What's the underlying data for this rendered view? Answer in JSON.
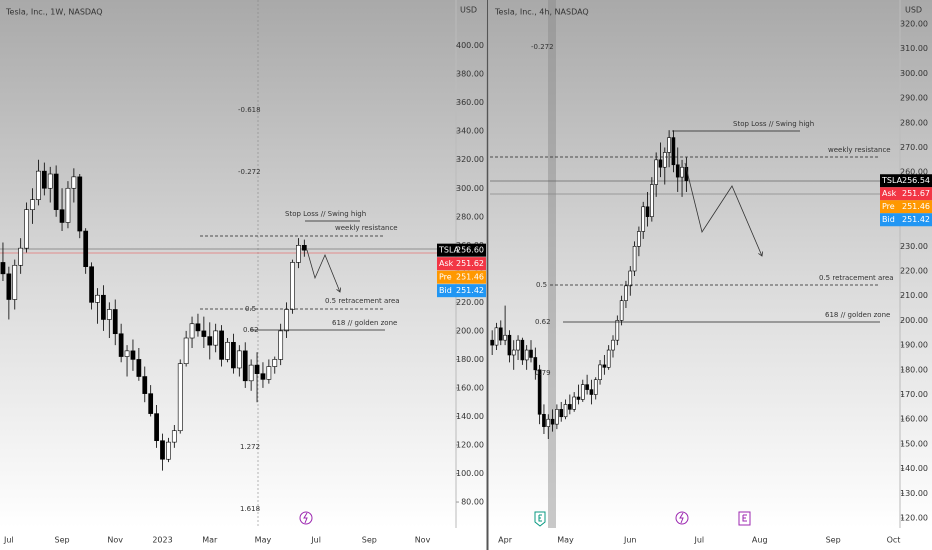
{
  "chart_data": [
    {
      "type": "candlestick",
      "title": "Tesla, Inc., 1W, NASDAQ",
      "currency": "USD",
      "categories": [
        null,
        "Jul",
        null,
        null,
        null,
        null,
        null,
        null,
        null,
        null,
        "Sep",
        null,
        null,
        null,
        null,
        null,
        null,
        null,
        null,
        "Nov",
        null,
        null,
        null,
        null,
        null,
        null,
        null,
        "2023",
        null,
        null,
        null,
        null,
        null,
        null,
        null,
        "Mar",
        null,
        null,
        null,
        null,
        null,
        null,
        null,
        null,
        "May",
        null,
        null,
        null,
        null,
        null,
        null,
        null,
        null,
        "Jul",
        null,
        null,
        null,
        null,
        null,
        null,
        null,
        null,
        "Sep",
        null,
        null,
        null,
        null,
        null,
        null,
        null,
        null,
        "Nov",
        null,
        null,
        null,
        null,
        null
      ],
      "open": [
        248,
        240,
        222,
        246,
        258,
        285,
        292,
        312,
        300,
        310,
        285,
        276,
        300,
        308,
        270,
        245,
        220,
        225,
        208,
        215,
        198,
        182,
        186,
        180,
        168,
        156,
        142,
        123,
        110,
        122,
        130,
        177,
        195,
        205,
        200,
        196,
        190,
        200,
        180,
        192,
        174,
        186,
        165,
        176,
        170,
        166,
        175,
        180,
        200,
        215,
        248,
        260,
        null,
        null,
        null,
        null,
        null,
        null,
        null,
        null,
        null,
        null,
        null,
        null,
        null,
        null,
        null,
        null,
        null,
        null,
        null,
        null,
        null,
        null,
        null,
        null,
        null
      ],
      "high": [
        262,
        245,
        250,
        265,
        290,
        300,
        320,
        318,
        315,
        316,
        300,
        305,
        314,
        310,
        272,
        248,
        230,
        232,
        220,
        222,
        205,
        190,
        194,
        188,
        175,
        162,
        148,
        128,
        125,
        134,
        180,
        200,
        210,
        212,
        210,
        206,
        205,
        204,
        195,
        198,
        190,
        192,
        180,
        185,
        178,
        180,
        182,
        205,
        220,
        250,
        265,
        264,
        null,
        null,
        null,
        null,
        null,
        null,
        null,
        null,
        null,
        null,
        null,
        null,
        null,
        null,
        null,
        null,
        null,
        null,
        null,
        null,
        null,
        null,
        null,
        null,
        null
      ],
      "low": [
        235,
        208,
        215,
        240,
        255,
        275,
        288,
        295,
        290,
        280,
        270,
        272,
        290,
        265,
        240,
        215,
        205,
        200,
        195,
        190,
        178,
        168,
        172,
        165,
        150,
        140,
        118,
        102,
        108,
        118,
        128,
        175,
        188,
        196,
        188,
        180,
        185,
        175,
        178,
        170,
        168,
        160,
        158,
        150,
        160,
        163,
        170,
        176,
        195,
        212,
        244,
        252,
        null,
        null,
        null,
        null,
        null,
        null,
        null,
        null,
        null,
        null,
        null,
        null,
        null,
        null,
        null,
        null,
        null,
        null,
        null,
        null,
        null,
        null,
        null,
        null,
        null
      ],
      "close": [
        240,
        222,
        246,
        258,
        285,
        292,
        312,
        300,
        310,
        285,
        276,
        300,
        308,
        270,
        245,
        220,
        225,
        208,
        215,
        198,
        182,
        186,
        180,
        168,
        156,
        142,
        123,
        110,
        122,
        130,
        177,
        195,
        205,
        200,
        196,
        190,
        200,
        180,
        192,
        174,
        186,
        165,
        176,
        170,
        166,
        175,
        180,
        200,
        215,
        248,
        260,
        256.6,
        null,
        null,
        null,
        null,
        null,
        null,
        null,
        null,
        null,
        null,
        null,
        null,
        null,
        null,
        null,
        null,
        null,
        null,
        null,
        null,
        null,
        null,
        null,
        null,
        null
      ],
      "ylim": [
        66,
        432
      ],
      "yticks": [
        {
          "value": 80,
          "label": "80.00"
        },
        {
          "value": 100,
          "label": "100.00"
        },
        {
          "value": 120,
          "label": "120.00"
        },
        {
          "value": 140,
          "label": "140.00"
        },
        {
          "value": 160,
          "label": "160.00"
        },
        {
          "value": 180,
          "label": "180.00"
        },
        {
          "value": 200,
          "label": "200.00"
        },
        {
          "value": 220,
          "label": "220.00"
        },
        {
          "value": 240,
          "label": "240.00"
        },
        {
          "value": 260,
          "label": "260.00"
        },
        {
          "value": 280,
          "label": "280.00"
        },
        {
          "value": 300,
          "label": "300.00"
        },
        {
          "value": 320,
          "label": "320.00"
        },
        {
          "value": 340,
          "label": "340.00"
        },
        {
          "value": 360,
          "label": "360.00"
        },
        {
          "value": 380,
          "label": "380.00"
        },
        {
          "value": 400,
          "label": "400.00"
        }
      ],
      "annotations": [
        "-0.618",
        "-0.272",
        "0.5",
        "0.62",
        "1.272",
        "1.618",
        "Stop Loss // Swing high",
        "weekly resistance",
        "0.5 retracement area",
        "618 // golden zone"
      ],
      "price_tags": {
        "names": [
          "TSLA",
          "Ask",
          "Pre",
          "Bid"
        ],
        "values": [
          256.6,
          251.62,
          251.46,
          251.42
        ],
        "value_labels": [
          "256.60",
          "251.62",
          "251.46",
          "251.42"
        ],
        "colors": [
          "#000000",
          "#f23645",
          "#ff9800",
          "#2196f3"
        ]
      }
    },
    {
      "type": "candlestick",
      "title": "Tesla, Inc., 4h, NASDAQ",
      "currency": "USD",
      "categories": [
        null,
        null,
        null,
        "Apr",
        null,
        null,
        null,
        null,
        null,
        null,
        null,
        null,
        null,
        null,
        null,
        null,
        null,
        "May",
        null,
        null,
        null,
        null,
        null,
        null,
        null,
        null,
        null,
        null,
        null,
        null,
        null,
        null,
        "Jun",
        null,
        null,
        null,
        null,
        null,
        null,
        null,
        null,
        null,
        null,
        null,
        null,
        null,
        null,
        null,
        "Jul",
        null,
        null,
        null,
        null,
        null,
        null,
        null,
        null,
        null,
        null,
        null,
        null,
        null,
        "Aug",
        null,
        null,
        null,
        null,
        null,
        null,
        null,
        null,
        null,
        null,
        null,
        null,
        null,
        null,
        null,
        null,
        "Sep",
        null,
        null,
        null,
        null,
        null,
        null,
        null,
        null,
        null,
        null,
        null,
        null,
        null,
        "Oct",
        null
      ],
      "open": [
        192,
        190,
        197,
        192,
        194,
        186,
        188,
        192,
        184,
        188,
        185,
        180,
        162,
        157,
        160,
        158,
        164,
        161,
        166,
        164,
        169,
        168,
        174,
        172,
        170,
        176,
        182,
        181,
        188,
        192,
        200,
        208,
        214,
        220,
        230,
        236,
        246,
        242,
        255,
        265,
        262,
        268,
        274,
        263,
        258,
        262,
        null,
        null,
        null,
        null,
        null,
        null,
        null,
        null,
        null,
        null,
        null,
        null,
        null,
        null,
        null,
        null,
        null,
        null,
        null,
        null,
        null,
        null,
        null,
        null,
        null,
        null,
        null,
        null,
        null,
        null,
        null,
        null,
        null,
        null,
        null,
        null,
        null,
        null,
        null,
        null,
        null,
        null,
        null,
        null,
        null,
        null,
        null,
        null,
        null
      ],
      "high": [
        196,
        199,
        200,
        206,
        196,
        192,
        194,
        193,
        190,
        192,
        189,
        182,
        166,
        162,
        164,
        166,
        167,
        168,
        170,
        171,
        174,
        176,
        178,
        176,
        177,
        184,
        186,
        190,
        194,
        202,
        210,
        216,
        222,
        232,
        238,
        248,
        252,
        258,
        268,
        272,
        270,
        277,
        277,
        270,
        265,
        266,
        null,
        null,
        null,
        null,
        null,
        null,
        null,
        null,
        null,
        null,
        null,
        null,
        null,
        null,
        null,
        null,
        null,
        null,
        null,
        null,
        null,
        null,
        null,
        null,
        null,
        null,
        null,
        null,
        null,
        null,
        null,
        null,
        null,
        null,
        null,
        null,
        null,
        null,
        null,
        null,
        null,
        null,
        null,
        null,
        null,
        null,
        null,
        null,
        null
      ],
      "low": [
        186,
        188,
        190,
        190,
        183,
        180,
        184,
        182,
        180,
        183,
        176,
        158,
        154,
        152,
        155,
        156,
        159,
        160,
        162,
        163,
        166,
        167,
        170,
        166,
        168,
        174,
        178,
        180,
        185,
        190,
        198,
        205,
        210,
        218,
        226,
        233,
        238,
        240,
        250,
        258,
        255,
        262,
        260,
        252,
        250,
        252,
        null,
        null,
        null,
        null,
        null,
        null,
        null,
        null,
        null,
        null,
        null,
        null,
        null,
        null,
        null,
        null,
        null,
        null,
        null,
        null,
        null,
        null,
        null,
        null,
        null,
        null,
        null,
        null,
        null,
        null,
        null,
        null,
        null,
        null,
        null,
        null,
        null,
        null,
        null,
        null,
        null,
        null,
        null,
        null,
        null,
        null,
        null,
        null,
        null
      ],
      "close": [
        190,
        197,
        192,
        194,
        186,
        188,
        192,
        184,
        188,
        185,
        180,
        162,
        157,
        160,
        158,
        164,
        161,
        166,
        164,
        169,
        168,
        174,
        172,
        170,
        176,
        182,
        181,
        188,
        192,
        200,
        208,
        214,
        220,
        230,
        236,
        246,
        242,
        255,
        265,
        262,
        268,
        274,
        263,
        258,
        262,
        256.54,
        null,
        null,
        null,
        null,
        null,
        null,
        null,
        null,
        null,
        null,
        null,
        null,
        null,
        null,
        null,
        null,
        null,
        null,
        null,
        null,
        null,
        null,
        null,
        null,
        null,
        null,
        null,
        null,
        null,
        null,
        null,
        null,
        null,
        null,
        null,
        null,
        null,
        null,
        null,
        null,
        null,
        null,
        null,
        null,
        null,
        null,
        null,
        null,
        null
      ],
      "ylim": [
        118.4,
        329.7
      ],
      "yticks": [
        {
          "value": 120,
          "label": "120.00"
        },
        {
          "value": 130,
          "label": "130.00"
        },
        {
          "value": 140,
          "label": "140.00"
        },
        {
          "value": 150,
          "label": "150.00"
        },
        {
          "value": 160,
          "label": "160.00"
        },
        {
          "value": 170,
          "label": "170.00"
        },
        {
          "value": 180,
          "label": "180.00"
        },
        {
          "value": 190,
          "label": "190.00"
        },
        {
          "value": 200,
          "label": "200.00"
        },
        {
          "value": 210,
          "label": "210.00"
        },
        {
          "value": 220,
          "label": "220.00"
        },
        {
          "value": 230,
          "label": "230.00"
        },
        {
          "value": 240,
          "label": "240.00"
        },
        {
          "value": 250,
          "label": "250.00"
        },
        {
          "value": 260,
          "label": "260.00"
        },
        {
          "value": 270,
          "label": "270.00"
        },
        {
          "value": 280,
          "label": "280.00"
        },
        {
          "value": 290,
          "label": "290.00"
        },
        {
          "value": 300,
          "label": "300.00"
        },
        {
          "value": 310,
          "label": "310.00"
        },
        {
          "value": 320,
          "label": "320.00"
        }
      ],
      "annotations": [
        "-0.272",
        "0.5",
        "0.62",
        "0.79",
        "Stop Loss // Swing high",
        "weekly resistance",
        "0.5 retracement area",
        "618 // golden zone"
      ],
      "price_tags": {
        "names": [
          "TSLA",
          "Ask",
          "Pre",
          "Bid"
        ],
        "values": [
          256.54,
          251.67,
          251.46,
          251.42
        ],
        "value_labels": [
          "256.54",
          "251.67",
          "251.46",
          "251.42"
        ],
        "colors": [
          "#000000",
          "#f23645",
          "#ff9800",
          "#2196f3"
        ]
      }
    }
  ]
}
